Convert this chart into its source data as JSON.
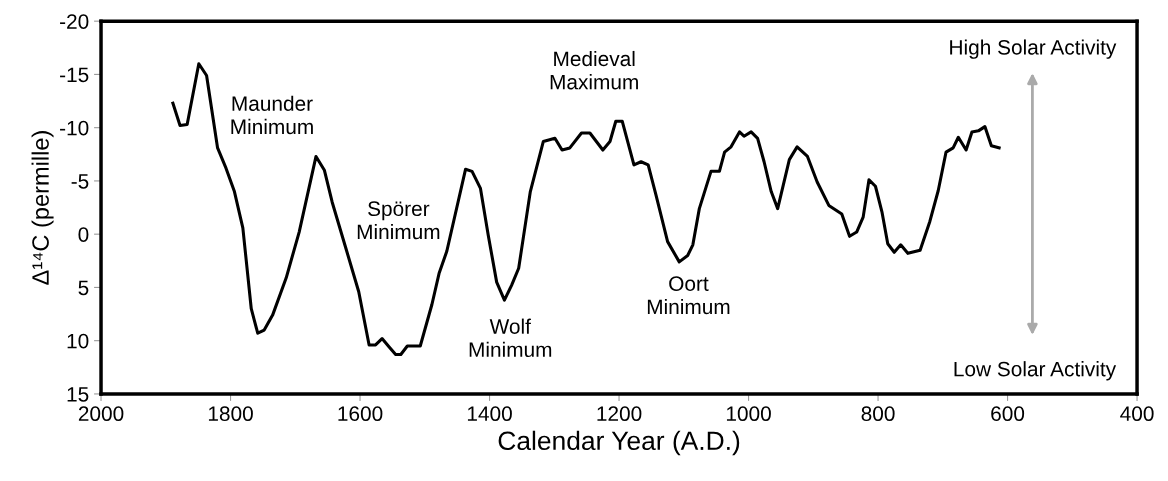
{
  "chart_data": {
    "type": "line",
    "xlabel": "Calendar Year (A.D.)",
    "ylabel": "Δ¹⁴C (permille)",
    "x": [
      1889,
      1878,
      1867,
      1849,
      1837,
      1820,
      1807,
      1794,
      1781,
      1768,
      1758,
      1748,
      1735,
      1714,
      1694,
      1668,
      1655,
      1643,
      1622,
      1602,
      1586,
      1576,
      1566,
      1555,
      1545,
      1537,
      1527,
      1507,
      1489,
      1478,
      1466,
      1437,
      1427,
      1414,
      1402,
      1389,
      1377,
      1366,
      1355,
      1337,
      1317,
      1299,
      1288,
      1276,
      1258,
      1245,
      1225,
      1214,
      1205,
      1195,
      1177,
      1166,
      1155,
      1143,
      1125,
      1107,
      1094,
      1086,
      1076,
      1058,
      1045,
      1037,
      1027,
      1014,
      1007,
      996,
      986,
      976,
      965,
      955,
      937,
      925,
      909,
      894,
      876,
      856,
      844,
      833,
      823,
      814,
      804,
      794,
      785,
      775,
      765,
      754,
      735,
      720,
      707,
      695,
      684,
      676,
      664,
      655,
      645,
      635,
      625,
      613
    ],
    "series": [
      {
        "color": "#000000",
        "values": [
          -12.3,
          -10.2,
          -10.3,
          -16.0,
          -14.9,
          -8.1,
          -6.2,
          -4.0,
          -0.6,
          7.0,
          9.3,
          9.0,
          7.6,
          4.1,
          -0.2,
          -7.3,
          -6.0,
          -3.0,
          1.3,
          5.4,
          10.4,
          10.4,
          9.8,
          10.6,
          11.3,
          11.3,
          10.5,
          10.5,
          6.6,
          3.7,
          1.6,
          -6.1,
          -5.9,
          -4.3,
          0.1,
          4.5,
          6.2,
          4.8,
          3.2,
          -4.0,
          -8.7,
          -9.0,
          -7.9,
          -8.1,
          -9.5,
          -9.5,
          -7.9,
          -8.7,
          -10.6,
          -10.6,
          -6.5,
          -6.8,
          -6.5,
          -3.7,
          0.7,
          2.6,
          2.0,
          1.0,
          -2.4,
          -5.9,
          -5.9,
          -7.7,
          -8.2,
          -9.6,
          -9.2,
          -9.6,
          -9.0,
          -6.8,
          -4.0,
          -2.4,
          -7.0,
          -8.2,
          -7.3,
          -4.9,
          -2.7,
          -1.9,
          0.2,
          -0.2,
          -1.6,
          -5.1,
          -4.5,
          -2.1,
          0.9,
          1.7,
          1.0,
          1.8,
          1.5,
          -1.2,
          -4.1,
          -7.7,
          -8.1,
          -9.1,
          -7.9,
          -9.6,
          -9.7,
          -10.1,
          -8.3,
          -8.1
        ]
      }
    ],
    "xlim": [
      2000,
      400
    ],
    "xticks": [
      2000,
      1800,
      1600,
      1400,
      1200,
      1000,
      800,
      600,
      400
    ],
    "ylim": [
      15,
      -20
    ],
    "yticks": [
      15,
      10,
      5,
      0,
      -5,
      -10,
      -15,
      -20
    ],
    "annotations": [
      "Maunder\nMinimum",
      "Spörer\nMinimum",
      "Wolf\nMinimum",
      "Medieval\nMaximum",
      "Oort\nMinimum",
      "High Solar Activity",
      "Low Solar Activity"
    ],
    "grid": false,
    "legend": false,
    "marker": "none",
    "line_style": "solid"
  }
}
